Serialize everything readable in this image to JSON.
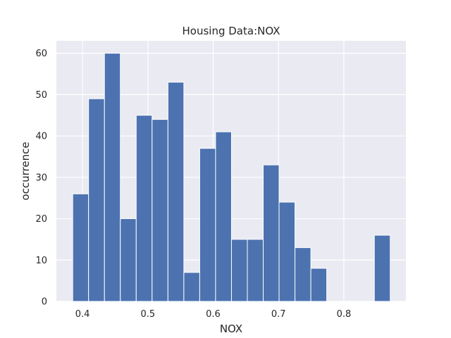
{
  "chart_data": {
    "type": "bar",
    "title": "Housing Data:NOX",
    "xlabel": "NOX",
    "ylabel": "occurrence",
    "xlim": [
      0.36,
      0.895
    ],
    "ylim": [
      0,
      63
    ],
    "xticks": [
      0.4,
      0.5,
      0.6,
      0.7,
      0.8
    ],
    "xtick_labels": [
      "0.4",
      "0.5",
      "0.6",
      "0.7",
      "0.8"
    ],
    "yticks": [
      0,
      10,
      20,
      30,
      40,
      50,
      60
    ],
    "ytick_labels": [
      "0",
      "10",
      "20",
      "30",
      "40",
      "50",
      "60"
    ],
    "bin_edges": [
      0.385,
      0.4093,
      0.4336,
      0.4579,
      0.4822,
      0.5065,
      0.5308,
      0.5551,
      0.5794,
      0.6037,
      0.628,
      0.6523,
      0.6766,
      0.7009,
      0.7252,
      0.7495,
      0.7738,
      0.7981,
      0.8224,
      0.8467,
      0.871
    ],
    "values": [
      26,
      49,
      60,
      20,
      45,
      44,
      53,
      7,
      37,
      41,
      15,
      15,
      33,
      24,
      13,
      8,
      0,
      0,
      0,
      16
    ],
    "grid": true,
    "bar_color": "#4c72b0",
    "background_color": "#eaeaf2"
  }
}
